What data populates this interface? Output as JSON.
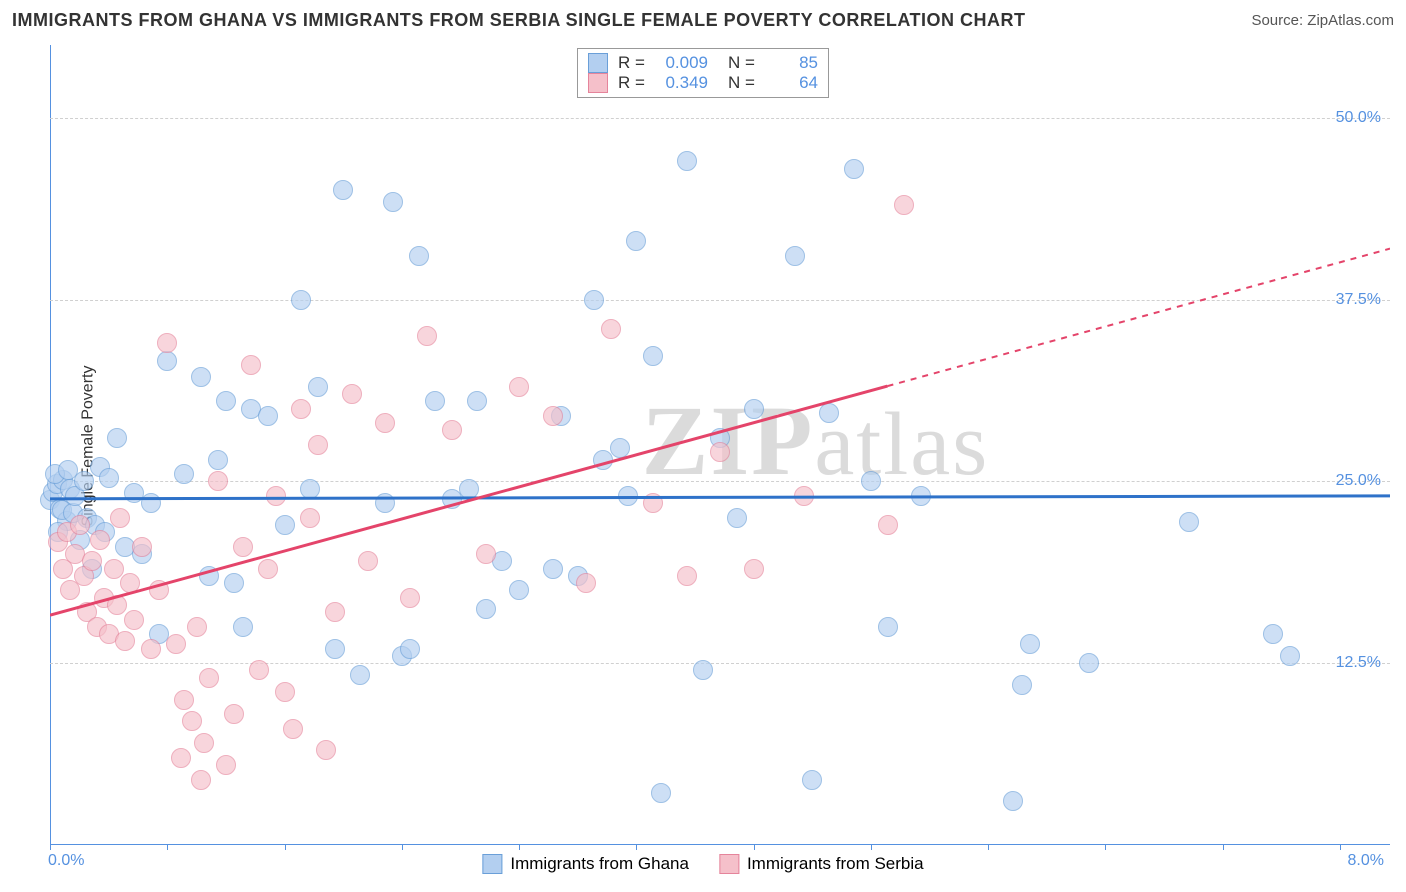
{
  "title": "IMMIGRANTS FROM GHANA VS IMMIGRANTS FROM SERBIA SINGLE FEMALE POVERTY CORRELATION CHART",
  "source": "Source: ZipAtlas.com",
  "watermark_text": "ZIPatlas",
  "ylabel": "Single Female Poverty",
  "chart": {
    "type": "scatter",
    "xlim": [
      0.0,
      8.0
    ],
    "ylim": [
      0.0,
      55.0
    ],
    "x_tick_labels": {
      "min": "0.0%",
      "max": "8.0%"
    },
    "x_tick_positions": [
      0.0,
      0.7,
      1.4,
      2.1,
      2.8,
      3.5,
      4.2,
      4.9,
      5.6,
      6.3,
      7.0,
      7.7
    ],
    "y_ticks": [
      {
        "v": 12.5,
        "label": "12.5%"
      },
      {
        "v": 25.0,
        "label": "25.0%"
      },
      {
        "v": 37.5,
        "label": "37.5%"
      },
      {
        "v": 50.0,
        "label": "50.0%"
      }
    ],
    "grid_color": "#d8d8d8",
    "axis_color": "#5591e0",
    "background_color": "#ffffff",
    "marker_radius": 10,
    "marker_stroke_width": 1.5,
    "series": [
      {
        "name": "Immigrants from Ghana",
        "fill": "#b3cff0",
        "stroke": "#6a9fd8",
        "fill_opacity": 0.65,
        "legend_swatch_fill": "#b3cff0",
        "legend_swatch_stroke": "#6a9fd8",
        "R": "0.009",
        "N": "85",
        "trend": {
          "color": "#2e72c9",
          "width": 3,
          "y_at_x0": 23.8,
          "y_at_xmax": 24.0,
          "solid_until_x": 8.0
        },
        "points": [
          [
            0.0,
            23.7
          ],
          [
            0.02,
            24.3
          ],
          [
            0.04,
            24.8
          ],
          [
            0.06,
            23.1
          ],
          [
            0.08,
            25.1
          ],
          [
            0.1,
            22.3
          ],
          [
            0.12,
            24.5
          ],
          [
            0.05,
            21.5
          ],
          [
            0.03,
            25.5
          ],
          [
            0.07,
            23.0
          ],
          [
            0.11,
            25.8
          ],
          [
            0.14,
            22.8
          ],
          [
            0.15,
            24.0
          ],
          [
            0.18,
            21.0
          ],
          [
            0.2,
            25.0
          ],
          [
            0.22,
            22.5
          ],
          [
            0.25,
            19.0
          ],
          [
            0.3,
            26.0
          ],
          [
            0.35,
            25.2
          ],
          [
            0.4,
            28.0
          ],
          [
            0.45,
            20.5
          ],
          [
            0.5,
            24.2
          ],
          [
            0.6,
            23.5
          ],
          [
            0.65,
            14.5
          ],
          [
            0.7,
            33.3
          ],
          [
            0.8,
            25.5
          ],
          [
            0.9,
            32.2
          ],
          [
            1.0,
            26.5
          ],
          [
            1.05,
            30.5
          ],
          [
            1.1,
            18.0
          ],
          [
            1.2,
            30.0
          ],
          [
            1.3,
            29.5
          ],
          [
            1.4,
            22.0
          ],
          [
            1.5,
            37.5
          ],
          [
            1.6,
            31.5
          ],
          [
            1.7,
            13.5
          ],
          [
            1.75,
            45.0
          ],
          [
            1.85,
            11.7
          ],
          [
            2.0,
            23.5
          ],
          [
            2.05,
            44.2
          ],
          [
            2.1,
            13.0
          ],
          [
            2.15,
            13.5
          ],
          [
            2.2,
            40.5
          ],
          [
            2.3,
            30.5
          ],
          [
            2.4,
            23.8
          ],
          [
            2.5,
            24.5
          ],
          [
            2.55,
            30.5
          ],
          [
            2.6,
            16.2
          ],
          [
            2.8,
            17.5
          ],
          [
            3.0,
            19.0
          ],
          [
            3.05,
            29.5
          ],
          [
            3.15,
            18.5
          ],
          [
            3.25,
            37.5
          ],
          [
            3.4,
            27.3
          ],
          [
            3.45,
            24.0
          ],
          [
            3.5,
            41.5
          ],
          [
            3.6,
            33.6
          ],
          [
            3.65,
            3.6
          ],
          [
            3.8,
            47.0
          ],
          [
            3.9,
            12.0
          ],
          [
            4.0,
            28.0
          ],
          [
            4.1,
            22.5
          ],
          [
            4.2,
            30.0
          ],
          [
            4.45,
            40.5
          ],
          [
            4.55,
            4.5
          ],
          [
            4.65,
            29.7
          ],
          [
            4.8,
            46.5
          ],
          [
            4.9,
            25.0
          ],
          [
            5.0,
            15.0
          ],
          [
            5.2,
            24.0
          ],
          [
            5.75,
            3.0
          ],
          [
            5.8,
            11.0
          ],
          [
            5.85,
            13.8
          ],
          [
            6.2,
            12.5
          ],
          [
            6.8,
            22.2
          ],
          [
            7.3,
            14.5
          ],
          [
            7.4,
            13.0
          ],
          [
            0.55,
            20.0
          ],
          [
            1.15,
            15.0
          ],
          [
            0.27,
            22.0
          ],
          [
            0.33,
            21.5
          ],
          [
            1.55,
            24.5
          ],
          [
            2.7,
            19.5
          ],
          [
            3.3,
            26.5
          ],
          [
            0.95,
            18.5
          ]
        ]
      },
      {
        "name": "Immigrants from Serbia",
        "fill": "#f5c0ca",
        "stroke": "#e5849b",
        "fill_opacity": 0.65,
        "legend_swatch_fill": "#f5c0ca",
        "legend_swatch_stroke": "#e5849b",
        "R": "0.349",
        "N": "64",
        "trend": {
          "color": "#e4446a",
          "width": 3,
          "y_at_x0": 15.8,
          "y_at_xmax": 41.0,
          "solid_until_x": 5.0
        },
        "points": [
          [
            0.05,
            20.8
          ],
          [
            0.08,
            19.0
          ],
          [
            0.1,
            21.5
          ],
          [
            0.12,
            17.5
          ],
          [
            0.15,
            20.0
          ],
          [
            0.18,
            22.0
          ],
          [
            0.2,
            18.5
          ],
          [
            0.22,
            16.0
          ],
          [
            0.25,
            19.5
          ],
          [
            0.28,
            15.0
          ],
          [
            0.3,
            21.0
          ],
          [
            0.32,
            17.0
          ],
          [
            0.35,
            14.5
          ],
          [
            0.38,
            19.0
          ],
          [
            0.4,
            16.5
          ],
          [
            0.42,
            22.5
          ],
          [
            0.45,
            14.0
          ],
          [
            0.48,
            18.0
          ],
          [
            0.5,
            15.5
          ],
          [
            0.55,
            20.5
          ],
          [
            0.6,
            13.5
          ],
          [
            0.65,
            17.5
          ],
          [
            0.7,
            34.5
          ],
          [
            0.75,
            13.8
          ],
          [
            0.78,
            6.0
          ],
          [
            0.8,
            10.0
          ],
          [
            0.85,
            8.5
          ],
          [
            0.88,
            15.0
          ],
          [
            0.9,
            4.5
          ],
          [
            0.92,
            7.0
          ],
          [
            0.95,
            11.5
          ],
          [
            1.0,
            25.0
          ],
          [
            1.05,
            5.5
          ],
          [
            1.1,
            9.0
          ],
          [
            1.15,
            20.5
          ],
          [
            1.2,
            33.0
          ],
          [
            1.25,
            12.0
          ],
          [
            1.3,
            19.0
          ],
          [
            1.35,
            24.0
          ],
          [
            1.4,
            10.5
          ],
          [
            1.45,
            8.0
          ],
          [
            1.5,
            30.0
          ],
          [
            1.55,
            22.5
          ],
          [
            1.6,
            27.5
          ],
          [
            1.7,
            16.0
          ],
          [
            1.8,
            31.0
          ],
          [
            1.9,
            19.5
          ],
          [
            2.0,
            29.0
          ],
          [
            2.15,
            17.0
          ],
          [
            2.25,
            35.0
          ],
          [
            2.4,
            28.5
          ],
          [
            2.6,
            20.0
          ],
          [
            2.8,
            31.5
          ],
          [
            3.0,
            29.5
          ],
          [
            3.2,
            18.0
          ],
          [
            3.35,
            35.5
          ],
          [
            3.6,
            23.5
          ],
          [
            3.8,
            18.5
          ],
          [
            4.0,
            27.0
          ],
          [
            4.2,
            19.0
          ],
          [
            4.5,
            24.0
          ],
          [
            5.0,
            22.0
          ],
          [
            5.1,
            44.0
          ],
          [
            1.65,
            6.5
          ]
        ]
      }
    ]
  },
  "legend_bottom": [
    {
      "label": "Immigrants from Ghana",
      "fill": "#b3cff0",
      "stroke": "#6a9fd8"
    },
    {
      "label": "Immigrants from Serbia",
      "fill": "#f5c0ca",
      "stroke": "#e5849b"
    }
  ]
}
